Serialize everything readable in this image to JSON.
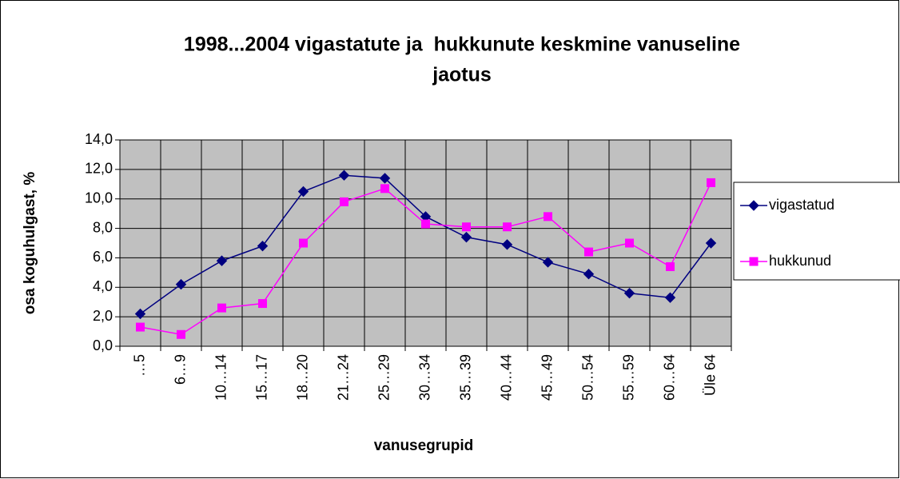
{
  "chart_data": {
    "type": "line",
    "title": [
      "1998...2004 vigastatute ja  hukkunute keskmine vanuseline",
      "jaotus"
    ],
    "x_label": "vanusegrupid",
    "y_label": "osa koguhulgast, %",
    "categories": [
      "…5",
      "6…9",
      "10…14",
      "15…17",
      "18…20",
      "21…24",
      "25…29",
      "30…34",
      "35…39",
      "40…44",
      "45…49",
      "50…54",
      "55…59",
      "60…64",
      "Üle 64"
    ],
    "series": [
      {
        "name": "vigastatud",
        "color": "#000080",
        "marker": "diamond",
        "values": [
          2.2,
          4.2,
          5.8,
          6.8,
          10.5,
          11.6,
          11.4,
          8.8,
          7.4,
          6.9,
          5.7,
          4.9,
          3.6,
          3.3,
          7.0
        ]
      },
      {
        "name": "hukkunud",
        "color": "#ff00ff",
        "marker": "square",
        "values": [
          1.3,
          0.8,
          2.6,
          2.9,
          7.0,
          9.8,
          10.7,
          8.3,
          8.1,
          8.1,
          8.8,
          6.4,
          7.0,
          5.4,
          11.1
        ]
      }
    ],
    "ylim": [
      0,
      14
    ],
    "yticks": [
      {
        "value": 0,
        "label": "0,0"
      },
      {
        "value": 2,
        "label": "2,0"
      },
      {
        "value": 4,
        "label": "4,0"
      },
      {
        "value": 6,
        "label": "6,0"
      },
      {
        "value": 8,
        "label": "8,0"
      },
      {
        "value": 10,
        "label": "10,0"
      },
      {
        "value": 12,
        "label": "12,0"
      },
      {
        "value": 14,
        "label": "14,0"
      }
    ],
    "grid": true,
    "plot_background": "#c0c0c0",
    "legend": "right"
  }
}
